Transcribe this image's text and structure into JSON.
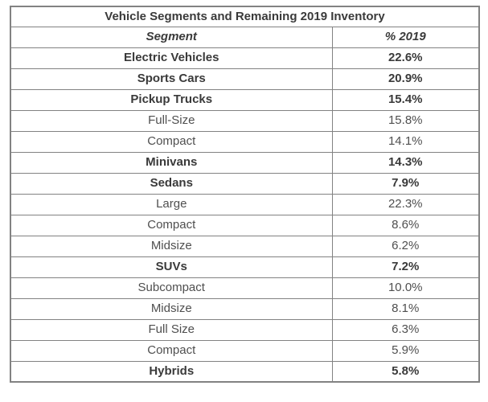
{
  "chart_data": {
    "type": "table",
    "title": "Vehicle Segments and Remaining 2019 Inventory",
    "columns": [
      "Segment",
      "% 2019"
    ],
    "rows": [
      {
        "segment": "Electric Vehicles",
        "value": "22.6%",
        "emphasis": true
      },
      {
        "segment": "Sports Cars",
        "value": "20.9%",
        "emphasis": true
      },
      {
        "segment": "Pickup Trucks",
        "value": "15.4%",
        "emphasis": true
      },
      {
        "segment": "Full-Size",
        "value": "15.8%",
        "emphasis": false
      },
      {
        "segment": "Compact",
        "value": "14.1%",
        "emphasis": false
      },
      {
        "segment": "Minivans",
        "value": "14.3%",
        "emphasis": true
      },
      {
        "segment": "Sedans",
        "value": "7.9%",
        "emphasis": true
      },
      {
        "segment": "Large",
        "value": "22.3%",
        "emphasis": false
      },
      {
        "segment": "Compact",
        "value": "8.6%",
        "emphasis": false
      },
      {
        "segment": "Midsize",
        "value": "6.2%",
        "emphasis": false
      },
      {
        "segment": "SUVs",
        "value": "7.2%",
        "emphasis": true
      },
      {
        "segment": "Subcompact",
        "value": "10.0%",
        "emphasis": false
      },
      {
        "segment": "Midsize",
        "value": "8.1%",
        "emphasis": false
      },
      {
        "segment": "Full Size",
        "value": "6.3%",
        "emphasis": false
      },
      {
        "segment": "Compact",
        "value": "5.9%",
        "emphasis": false
      },
      {
        "segment": "Hybrids",
        "value": "5.8%",
        "emphasis": true
      }
    ],
    "layout_hints": {
      "grid": "all-borders",
      "title_position": "top-row-spanning-both-columns",
      "emphasis_meaning": "bold rows are top-level vehicle segments; regular rows are sub-segments"
    }
  },
  "colors": {
    "border": "#828282",
    "text_bold": "#3a3a3a",
    "text_regular": "#4f4f4f",
    "background": "#ffffff"
  }
}
